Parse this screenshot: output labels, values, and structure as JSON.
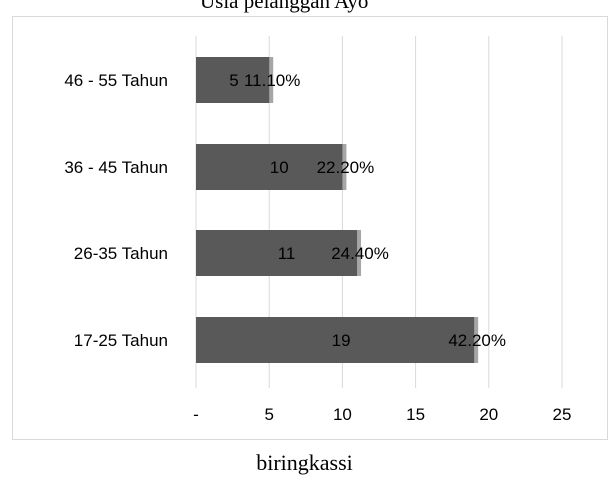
{
  "page": {
    "title_fragment": "Usia pelanggan Ayo",
    "caption": "biringkassi"
  },
  "chart_data": {
    "type": "bar",
    "orientation": "horizontal",
    "categories": [
      "46 - 55 Tahun",
      "36 - 45 Tahun",
      "26-35 Tahun",
      "17-25 Tahun"
    ],
    "values": [
      5,
      10,
      11,
      19
    ],
    "percent_labels": [
      "11.10%",
      "22.20%",
      "24.40%",
      "42.20%"
    ],
    "xlim": [
      0,
      25
    ],
    "x_ticks": [
      0,
      5,
      10,
      15,
      20,
      25
    ],
    "x_tick_labels": [
      "-",
      "5",
      "10",
      "15",
      "20",
      "25"
    ],
    "grid": "vertical",
    "colors": {
      "bar": "#595959",
      "bar_shadow": "#a6a6a6",
      "grid": "#d9d9d9"
    }
  }
}
